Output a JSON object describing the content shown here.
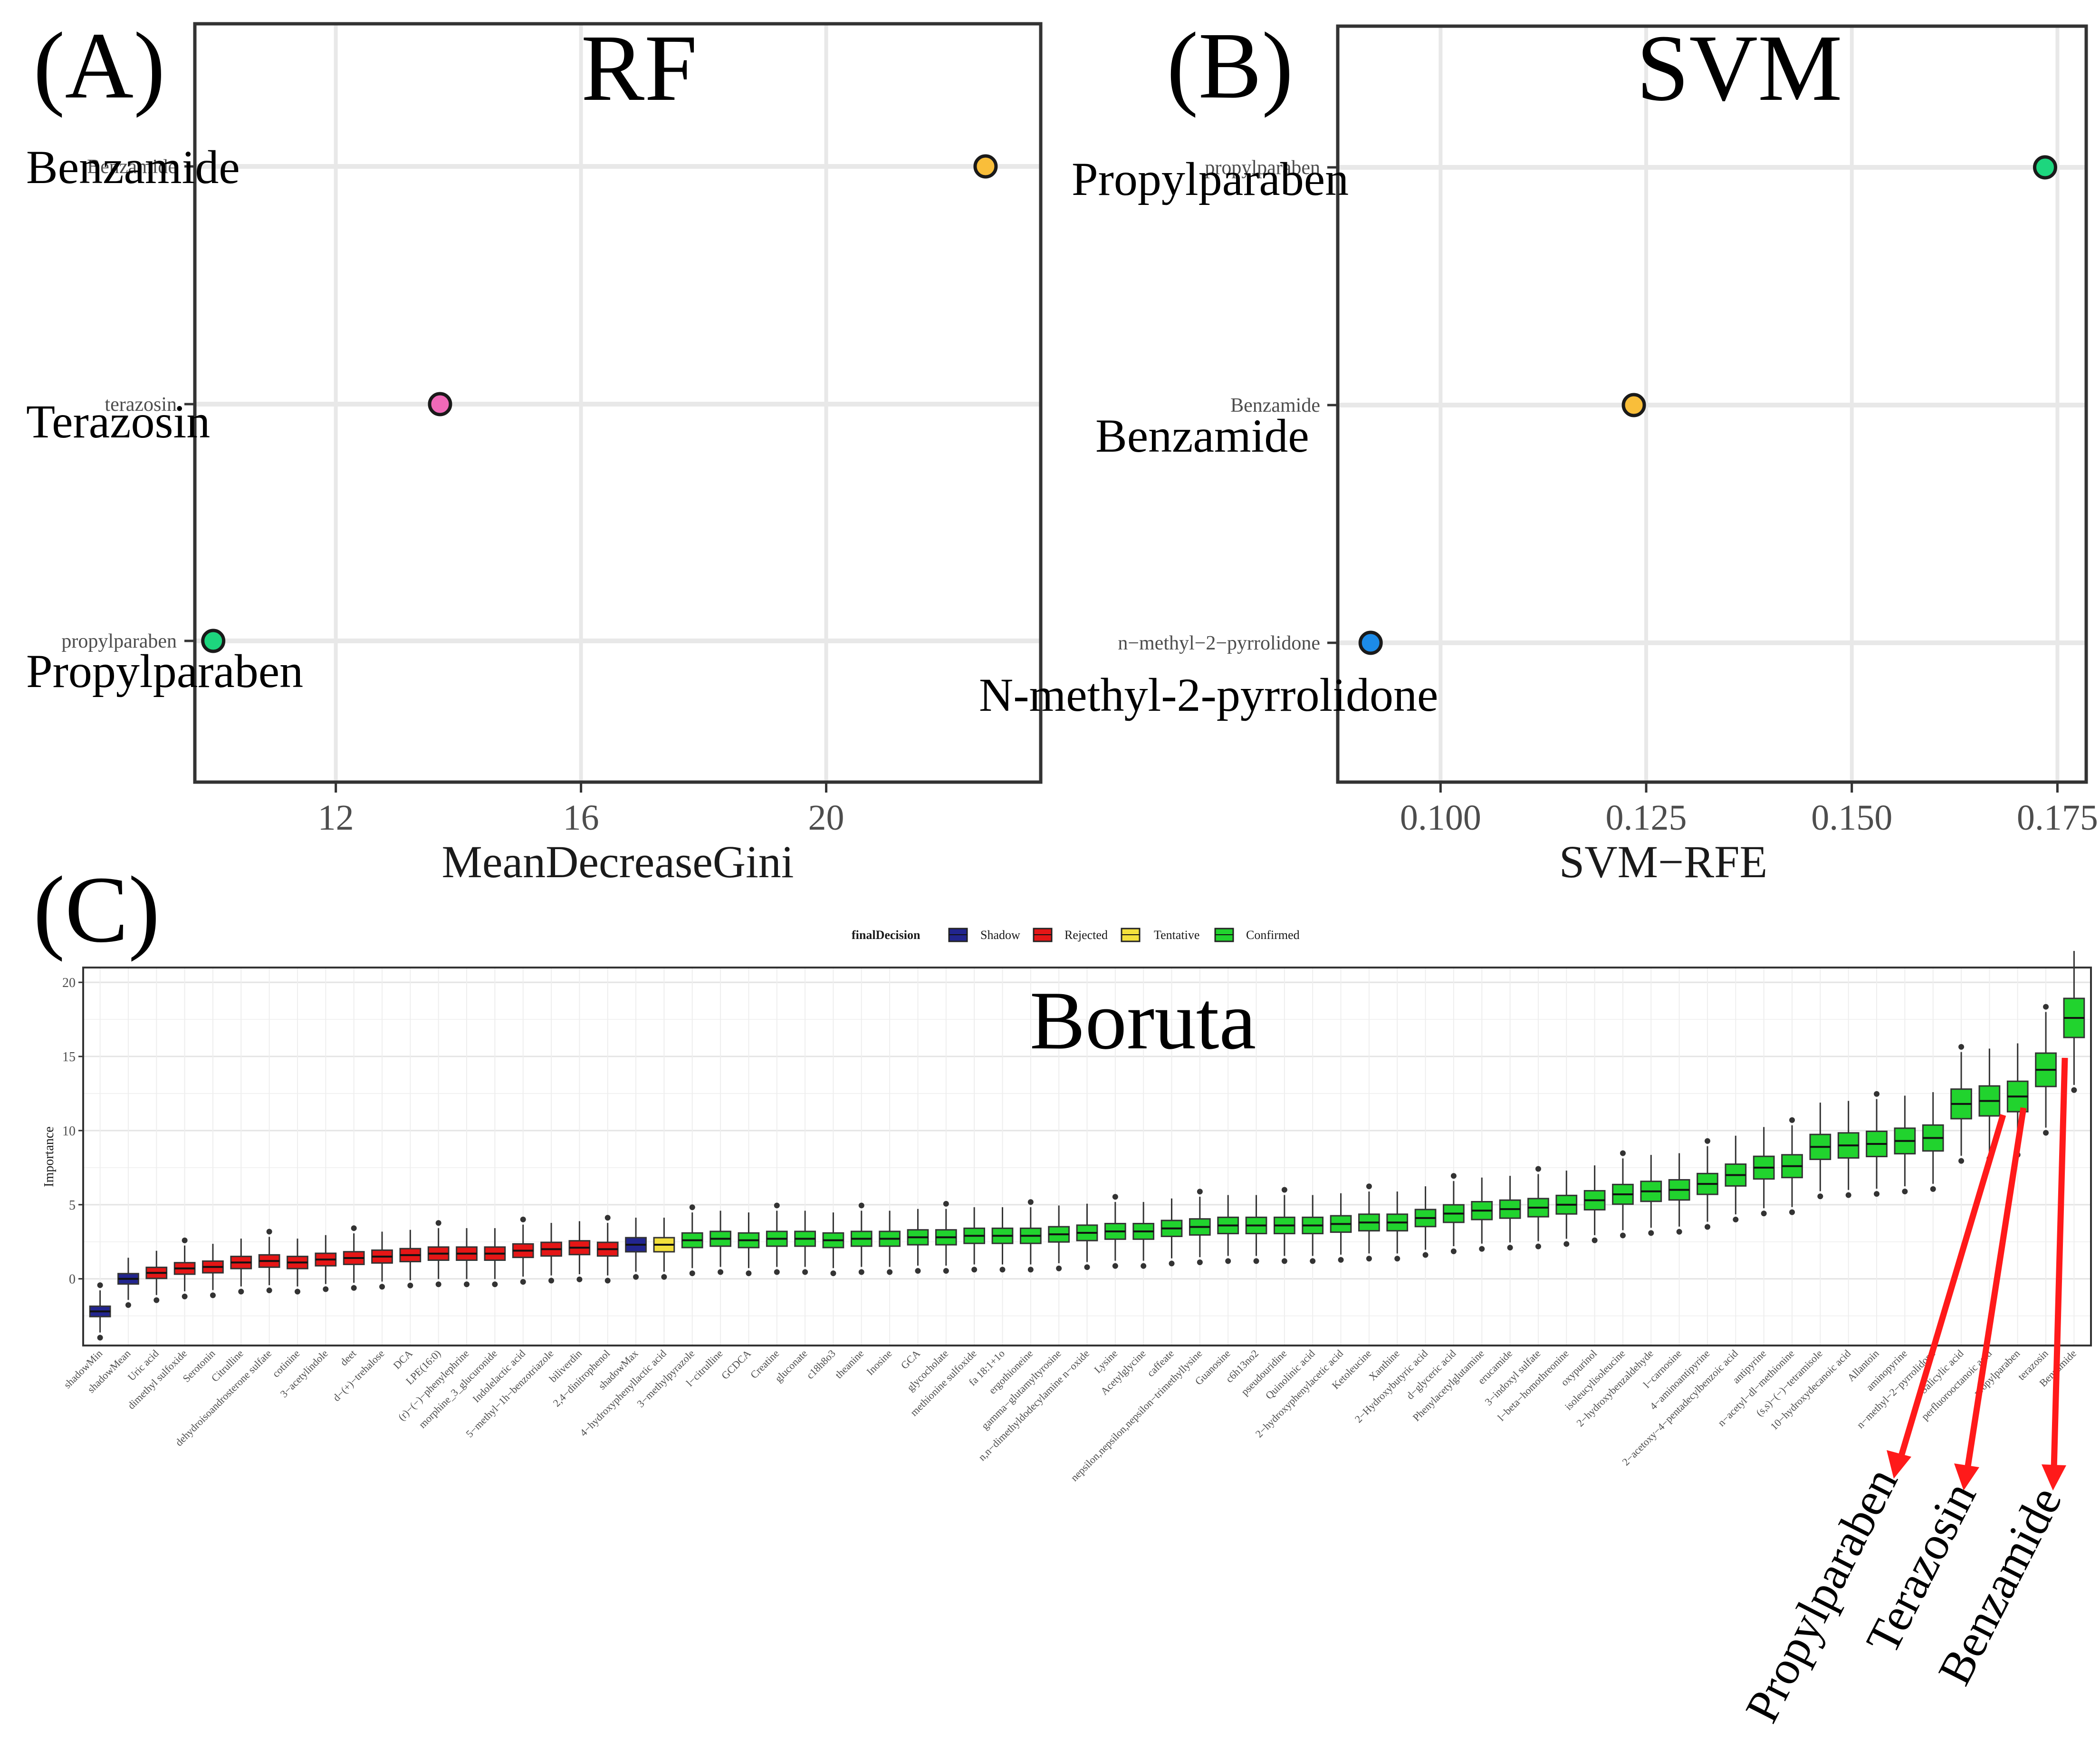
{
  "chart_data": [
    {
      "panel_label": "(A)",
      "type": "scatter",
      "title": "RF",
      "xlabel": "MeanDecreaseGini",
      "xlim": [
        9.7,
        23.5
      ],
      "xticks": [
        12,
        16,
        20
      ],
      "xtick_labels": [
        "12",
        "16",
        "20"
      ],
      "categories": [
        "Benzamide",
        "terazosin",
        "propylparaben"
      ],
      "tick_labels": [
        "Benzamide",
        "terazosin",
        "propylparaben"
      ],
      "annotations": [
        "Benzamide",
        "Terazosin",
        "Propylparaben"
      ],
      "values": [
        22.6,
        13.7,
        10.0
      ],
      "colors": [
        "#F9BE3A",
        "#F069B8",
        "#1DD67E"
      ],
      "grid": true
    },
    {
      "panel_label": "(B)",
      "type": "scatter",
      "title": "SVM",
      "xlabel": "SVM−RFE",
      "xlim": [
        0.0875,
        0.1785
      ],
      "xticks": [
        0.1,
        0.125,
        0.15,
        0.175
      ],
      "xtick_labels": [
        "0.100",
        "0.125",
        "0.150",
        "0.175"
      ],
      "categories": [
        "propylparaben",
        "Benzamide",
        "n−methyl−2−pyrrolidone"
      ],
      "tick_labels": [
        "propylparaben",
        "Benzamide",
        "n−methyl−2−pyrrolidone"
      ],
      "annotations": [
        "Propylparaben",
        "Benzamide",
        "N-methyl-2-pyrrolidone"
      ],
      "values": [
        0.1735,
        0.1235,
        0.0915
      ],
      "colors": [
        "#1DD67E",
        "#F9BE3A",
        "#1C8BE8"
      ],
      "grid": true
    },
    {
      "panel_label": "(C)",
      "type": "box",
      "title": "Boruta",
      "ylabel": "Importance",
      "ylim": [
        -4.5,
        21
      ],
      "yticks": [
        0,
        5,
        10,
        15,
        20
      ],
      "ytick_labels": [
        "0",
        "5",
        "10",
        "15",
        "20"
      ],
      "legend": {
        "title": "finalDecision",
        "items": [
          {
            "label": "Shadow",
            "color": "#22258F"
          },
          {
            "label": "Rejected",
            "color": "#E51616"
          },
          {
            "label": "Tentative",
            "color": "#F3E03C"
          },
          {
            "label": "Confirmed",
            "color": "#21D32E"
          }
        ],
        "position": "top"
      },
      "categories": [
        "shadowMin",
        "shadowMean",
        "Uric acid",
        "dimethyl sulfoxide",
        "Serotonin",
        "Citrulline",
        "dehydroisoandrosterone sulfate",
        "cotinine",
        "3−acetylindole",
        "deet",
        "d−(+)−trehalose",
        "DCA",
        "LPE(16:0)",
        "(r)−(−)−phenylephrine",
        "morphine_3_glucuronide",
        "Indolelactic acid",
        "5−methyl−1h−benzotriazole",
        "biliverdin",
        "2,4−dinitrophenol",
        "shadowMax",
        "4−hydroxyphenyllactic acid",
        "3−methylpyrazole",
        "l−citrulline",
        "GCDCA",
        "Creatine",
        "gluconate",
        "c18h8o3",
        "theanine",
        "Inosine",
        "GCA",
        "glycocholate",
        "methionine sulfoxide",
        "fa 18:1+1o",
        "ergothioneine",
        "gamma−glutamyltyrosine",
        "n,n−dimethyldodecylamine n−oxide",
        "Lysine",
        "Acetylglycine",
        "caffeate",
        "nepsilon,nepsilon,nepsilon−trimethyllysine",
        "Guanosine",
        "c6h13no2",
        "pseudouridine",
        "Quinolinic acid",
        "2−hydroxyphenylacetic acid",
        "Ketoleucine",
        "Xanthine",
        "2−Hydroxybutyric acid",
        "d−glyceric acid",
        "Phenylacetylglutamine",
        "erucamide",
        "3−indoxyl sulfate",
        "l−beta−homothreonine",
        "oxypurinol",
        "isoleucylisoleucine",
        "2−hydroxybenzaldehyde",
        "l−carnosine",
        "4−aminoantipyrine",
        "2−acetoxy−4−pentadecylbenzoic acid",
        "antipyrine",
        "n−acetyl−dl−methionine",
        "(s,s)−(−)−tetramisole",
        "10−hydroxydecanoic acid",
        "Allantoin",
        "aminopyrine",
        "n−methyl−2−pyrrolidone",
        "Salicylic acid",
        "perfluorooctanoic acid",
        "propylparaben",
        "terazosin",
        "Benzamide"
      ],
      "medians": [
        -2.2,
        0.0,
        0.4,
        0.7,
        0.8,
        1.1,
        1.2,
        1.1,
        1.3,
        1.4,
        1.5,
        1.6,
        1.7,
        1.7,
        1.7,
        1.9,
        2.0,
        2.1,
        2.0,
        2.3,
        2.3,
        2.6,
        2.7,
        2.6,
        2.7,
        2.7,
        2.6,
        2.7,
        2.7,
        2.8,
        2.8,
        2.9,
        2.9,
        2.9,
        3.0,
        3.1,
        3.2,
        3.2,
        3.4,
        3.5,
        3.6,
        3.6,
        3.6,
        3.6,
        3.7,
        3.8,
        3.8,
        4.1,
        4.4,
        4.6,
        4.7,
        4.8,
        5.0,
        5.3,
        5.7,
        5.9,
        6.0,
        6.4,
        7.0,
        7.5,
        7.6,
        8.9,
        9.0,
        9.1,
        9.3,
        9.5,
        11.8,
        12.0,
        12.3,
        14.1,
        17.6
      ],
      "decisions": [
        "Shadow",
        "Shadow",
        "Rejected",
        "Rejected",
        "Rejected",
        "Rejected",
        "Rejected",
        "Rejected",
        "Rejected",
        "Rejected",
        "Rejected",
        "Rejected",
        "Rejected",
        "Rejected",
        "Rejected",
        "Rejected",
        "Rejected",
        "Rejected",
        "Rejected",
        "Shadow",
        "Tentative",
        "Confirmed",
        "Confirmed",
        "Confirmed",
        "Confirmed",
        "Confirmed",
        "Confirmed",
        "Confirmed",
        "Confirmed",
        "Confirmed",
        "Confirmed",
        "Confirmed",
        "Confirmed",
        "Confirmed",
        "Confirmed",
        "Confirmed",
        "Confirmed",
        "Confirmed",
        "Confirmed",
        "Confirmed",
        "Confirmed",
        "Confirmed",
        "Confirmed",
        "Confirmed",
        "Confirmed",
        "Confirmed",
        "Confirmed",
        "Confirmed",
        "Confirmed",
        "Confirmed",
        "Confirmed",
        "Confirmed",
        "Confirmed",
        "Confirmed",
        "Confirmed",
        "Confirmed",
        "Confirmed",
        "Confirmed",
        "Confirmed",
        "Confirmed",
        "Confirmed",
        "Confirmed",
        "Confirmed",
        "Confirmed",
        "Confirmed",
        "Confirmed",
        "Confirmed",
        "Confirmed",
        "Confirmed",
        "Confirmed",
        "Confirmed"
      ],
      "callouts": [
        "Propylparaben",
        "Terazosin",
        "Benzamide"
      ],
      "grid": true
    }
  ]
}
